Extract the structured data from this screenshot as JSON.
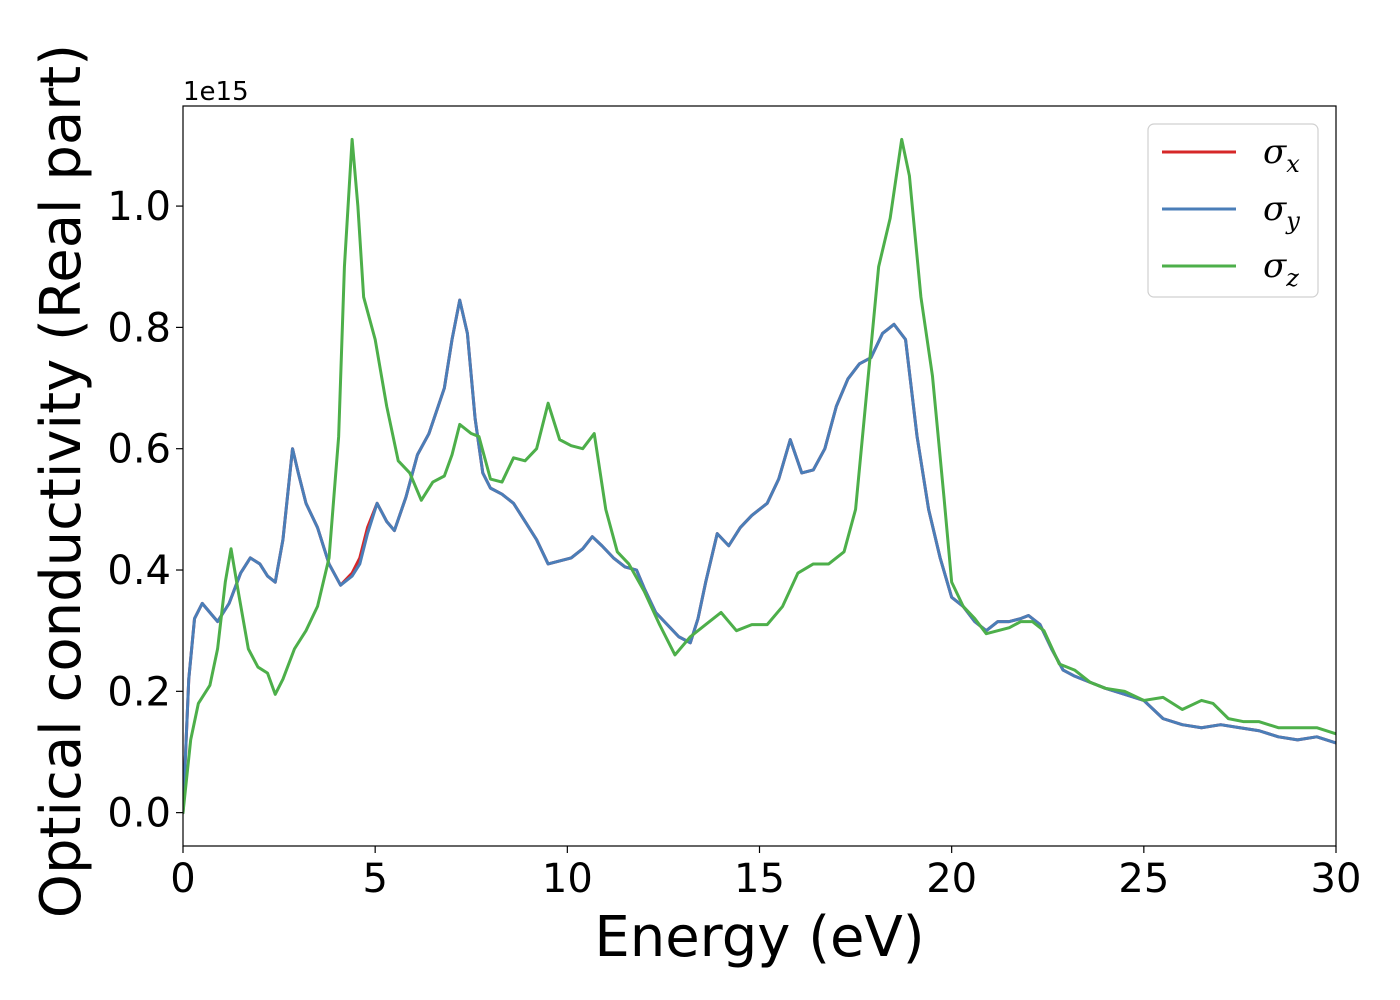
{
  "chart_data": {
    "type": "line",
    "title": "",
    "xlabel": "Energy (eV)",
    "ylabel": "Optical conductivity (Real part)",
    "y_offset_text": "1e15",
    "xlim": [
      0,
      30
    ],
    "ylim": [
      -0.055,
      1.165
    ],
    "x_ticks": [
      0,
      5,
      10,
      15,
      20,
      25,
      30
    ],
    "x_tick_labels": [
      "0",
      "5",
      "10",
      "15",
      "20",
      "25",
      "30"
    ],
    "y_ticks": [
      0.0,
      0.2,
      0.4,
      0.6,
      0.8,
      1.0
    ],
    "y_tick_labels": [
      "0.0",
      "0.2",
      "0.4",
      "0.6",
      "0.8",
      "1.0"
    ],
    "grid": false,
    "legend_position": "top-right",
    "series": [
      {
        "name": "σx",
        "symbol": "σ",
        "subscript": "x",
        "color": "#d62728",
        "x": [
          0,
          0.15,
          0.3,
          0.5,
          0.7,
          0.9,
          1.2,
          1.5,
          1.75,
          2.0,
          2.2,
          2.4,
          2.6,
          2.85,
          3.0,
          3.2,
          3.5,
          3.8,
          4.1,
          4.4,
          4.6,
          4.8,
          5.05,
          5.3,
          5.5,
          5.8,
          6.1,
          6.4,
          6.8,
          7.0,
          7.2,
          7.4,
          7.6,
          7.8,
          8.0,
          8.3,
          8.6,
          8.9,
          9.2,
          9.5,
          9.8,
          10.1,
          10.4,
          10.65,
          10.9,
          11.2,
          11.5,
          11.8,
          12.0,
          12.3,
          12.6,
          12.9,
          13.2,
          13.4,
          13.6,
          13.9,
          14.2,
          14.5,
          14.8,
          15.2,
          15.5,
          15.8,
          16.1,
          16.4,
          16.7,
          17.0,
          17.3,
          17.6,
          17.9,
          18.2,
          18.5,
          18.8,
          19.1,
          19.4,
          19.7,
          20.0,
          20.3,
          20.6,
          20.9,
          21.2,
          21.5,
          21.8,
          22.0,
          22.3,
          22.6,
          22.9,
          23.2,
          23.6,
          24.0,
          24.5,
          25.0,
          25.5,
          26.0,
          26.5,
          27.0,
          27.5,
          28.0,
          28.5,
          29.0,
          29.5,
          30.0
        ],
        "y": [
          0.0,
          0.22,
          0.32,
          0.345,
          0.33,
          0.315,
          0.345,
          0.395,
          0.42,
          0.41,
          0.39,
          0.38,
          0.45,
          0.6,
          0.56,
          0.51,
          0.47,
          0.41,
          0.375,
          0.395,
          0.42,
          0.47,
          0.51,
          0.48,
          0.465,
          0.52,
          0.59,
          0.625,
          0.7,
          0.78,
          0.845,
          0.79,
          0.65,
          0.56,
          0.535,
          0.525,
          0.51,
          0.48,
          0.45,
          0.41,
          0.415,
          0.42,
          0.435,
          0.455,
          0.44,
          0.42,
          0.405,
          0.4,
          0.37,
          0.33,
          0.31,
          0.29,
          0.28,
          0.32,
          0.38,
          0.46,
          0.44,
          0.47,
          0.49,
          0.51,
          0.55,
          0.615,
          0.56,
          0.565,
          0.6,
          0.67,
          0.715,
          0.74,
          0.75,
          0.79,
          0.805,
          0.78,
          0.62,
          0.5,
          0.42,
          0.355,
          0.34,
          0.315,
          0.3,
          0.315,
          0.315,
          0.32,
          0.325,
          0.31,
          0.27,
          0.235,
          0.225,
          0.215,
          0.205,
          0.195,
          0.185,
          0.155,
          0.145,
          0.14,
          0.145,
          0.14,
          0.135,
          0.125,
          0.12,
          0.125,
          0.115
        ]
      },
      {
        "name": "σy",
        "symbol": "σ",
        "subscript": "y",
        "color": "#4a7eb8",
        "x": [
          0,
          0.15,
          0.3,
          0.5,
          0.7,
          0.9,
          1.2,
          1.5,
          1.75,
          2.0,
          2.2,
          2.4,
          2.6,
          2.85,
          3.0,
          3.2,
          3.5,
          3.8,
          4.1,
          4.4,
          4.6,
          4.8,
          5.05,
          5.3,
          5.5,
          5.8,
          6.1,
          6.4,
          6.8,
          7.0,
          7.2,
          7.4,
          7.6,
          7.8,
          8.0,
          8.3,
          8.6,
          8.9,
          9.2,
          9.5,
          9.8,
          10.1,
          10.4,
          10.65,
          10.9,
          11.2,
          11.5,
          11.8,
          12.0,
          12.3,
          12.6,
          12.9,
          13.2,
          13.4,
          13.6,
          13.9,
          14.2,
          14.5,
          14.8,
          15.2,
          15.5,
          15.8,
          16.1,
          16.4,
          16.7,
          17.0,
          17.3,
          17.6,
          17.9,
          18.2,
          18.5,
          18.8,
          19.1,
          19.4,
          19.7,
          20.0,
          20.3,
          20.6,
          20.9,
          21.2,
          21.5,
          21.8,
          22.0,
          22.3,
          22.6,
          22.9,
          23.2,
          23.6,
          24.0,
          24.5,
          25.0,
          25.5,
          26.0,
          26.5,
          27.0,
          27.5,
          28.0,
          28.5,
          29.0,
          29.5,
          30.0
        ],
        "y": [
          0.0,
          0.22,
          0.32,
          0.345,
          0.33,
          0.315,
          0.345,
          0.395,
          0.42,
          0.41,
          0.39,
          0.38,
          0.45,
          0.6,
          0.56,
          0.51,
          0.47,
          0.41,
          0.375,
          0.39,
          0.41,
          0.46,
          0.51,
          0.48,
          0.465,
          0.52,
          0.59,
          0.625,
          0.7,
          0.78,
          0.845,
          0.79,
          0.65,
          0.56,
          0.535,
          0.525,
          0.51,
          0.48,
          0.45,
          0.41,
          0.415,
          0.42,
          0.435,
          0.455,
          0.44,
          0.42,
          0.405,
          0.4,
          0.37,
          0.33,
          0.31,
          0.29,
          0.28,
          0.32,
          0.38,
          0.46,
          0.44,
          0.47,
          0.49,
          0.51,
          0.55,
          0.615,
          0.56,
          0.565,
          0.6,
          0.67,
          0.715,
          0.74,
          0.75,
          0.79,
          0.805,
          0.78,
          0.62,
          0.5,
          0.42,
          0.355,
          0.34,
          0.315,
          0.3,
          0.315,
          0.315,
          0.32,
          0.325,
          0.31,
          0.27,
          0.235,
          0.225,
          0.215,
          0.205,
          0.195,
          0.185,
          0.155,
          0.145,
          0.14,
          0.145,
          0.14,
          0.135,
          0.125,
          0.12,
          0.125,
          0.115
        ]
      },
      {
        "name": "σz",
        "symbol": "σ",
        "subscript": "z",
        "color": "#4daf4a",
        "x": [
          0,
          0.2,
          0.4,
          0.7,
          0.9,
          1.1,
          1.25,
          1.45,
          1.7,
          1.95,
          2.2,
          2.4,
          2.6,
          2.9,
          3.2,
          3.5,
          3.8,
          4.05,
          4.2,
          4.4,
          4.55,
          4.7,
          5.0,
          5.3,
          5.6,
          5.9,
          6.2,
          6.5,
          6.8,
          7.0,
          7.2,
          7.5,
          7.7,
          8.0,
          8.3,
          8.6,
          8.9,
          9.2,
          9.5,
          9.8,
          10.1,
          10.4,
          10.7,
          11.0,
          11.3,
          11.6,
          12.0,
          12.4,
          12.8,
          13.2,
          13.6,
          14.0,
          14.4,
          14.8,
          15.2,
          15.6,
          16.0,
          16.4,
          16.8,
          17.2,
          17.5,
          17.8,
          18.1,
          18.4,
          18.7,
          18.9,
          19.2,
          19.5,
          19.8,
          20.0,
          20.3,
          20.6,
          20.9,
          21.2,
          21.5,
          21.8,
          22.1,
          22.4,
          22.8,
          23.2,
          23.6,
          24.0,
          24.5,
          25.0,
          25.5,
          26.0,
          26.5,
          26.8,
          27.2,
          27.6,
          28.0,
          28.5,
          29.0,
          29.5,
          30.0
        ],
        "y": [
          0.0,
          0.12,
          0.18,
          0.21,
          0.27,
          0.38,
          0.435,
          0.36,
          0.27,
          0.24,
          0.23,
          0.195,
          0.22,
          0.27,
          0.3,
          0.34,
          0.42,
          0.62,
          0.9,
          1.11,
          1.0,
          0.85,
          0.78,
          0.67,
          0.58,
          0.56,
          0.515,
          0.545,
          0.555,
          0.59,
          0.64,
          0.625,
          0.62,
          0.55,
          0.545,
          0.585,
          0.58,
          0.6,
          0.675,
          0.615,
          0.605,
          0.6,
          0.625,
          0.5,
          0.43,
          0.41,
          0.365,
          0.31,
          0.26,
          0.29,
          0.31,
          0.33,
          0.3,
          0.31,
          0.31,
          0.34,
          0.395,
          0.41,
          0.41,
          0.43,
          0.5,
          0.7,
          0.9,
          0.98,
          1.11,
          1.05,
          0.85,
          0.72,
          0.52,
          0.38,
          0.34,
          0.32,
          0.295,
          0.3,
          0.305,
          0.315,
          0.315,
          0.3,
          0.245,
          0.235,
          0.215,
          0.205,
          0.2,
          0.185,
          0.19,
          0.17,
          0.185,
          0.18,
          0.155,
          0.15,
          0.15,
          0.14,
          0.14,
          0.14,
          0.13
        ]
      }
    ]
  }
}
